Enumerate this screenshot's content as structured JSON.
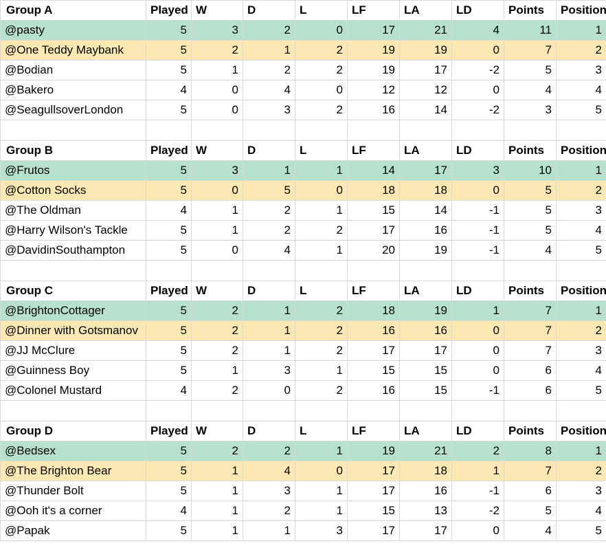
{
  "colors": {
    "first_place_fill": "#b7e1cd",
    "second_place_fill": "#fce8b2",
    "gridline": "#d9d9d9"
  },
  "columns": [
    "Played",
    "W",
    "D",
    "L",
    "LF",
    "LA",
    "LD",
    "Points",
    "Position"
  ],
  "groups": [
    {
      "title": "Group A",
      "rows": [
        [
          "@pasty",
          "5",
          "3",
          "2",
          "0",
          "17",
          "21",
          "4",
          "11",
          "1"
        ],
        [
          "@One Teddy Maybank",
          "5",
          "2",
          "1",
          "2",
          "19",
          "19",
          "0",
          "7",
          "2"
        ],
        [
          "@Bodian",
          "5",
          "1",
          "2",
          "2",
          "19",
          "17",
          "-2",
          "5",
          "3"
        ],
        [
          "@Bakero",
          "4",
          "0",
          "4",
          "0",
          "12",
          "12",
          "0",
          "4",
          "4"
        ],
        [
          "@SeagullsoverLondon",
          "5",
          "0",
          "3",
          "2",
          "16",
          "14",
          "-2",
          "3",
          "5"
        ]
      ]
    },
    {
      "title": "Group B",
      "rows": [
        [
          "@Frutos",
          "5",
          "3",
          "1",
          "1",
          "14",
          "17",
          "3",
          "10",
          "1"
        ],
        [
          "@Cotton Socks",
          "5",
          "0",
          "5",
          "0",
          "18",
          "18",
          "0",
          "5",
          "2"
        ],
        [
          "@The Oldman",
          "4",
          "1",
          "2",
          "1",
          "15",
          "14",
          "-1",
          "5",
          "3"
        ],
        [
          "@Harry Wilson's Tackle",
          "5",
          "1",
          "2",
          "2",
          "17",
          "16",
          "-1",
          "5",
          "4"
        ],
        [
          "@DavidinSouthampton",
          "5",
          "0",
          "4",
          "1",
          "20",
          "19",
          "-1",
          "4",
          "5"
        ]
      ]
    },
    {
      "title": "Group C",
      "rows": [
        [
          "@BrightonCottager",
          "5",
          "2",
          "1",
          "2",
          "18",
          "19",
          "1",
          "7",
          "1"
        ],
        [
          "@Dinner with Gotsmanov",
          "5",
          "2",
          "1",
          "2",
          "16",
          "16",
          "0",
          "7",
          "2"
        ],
        [
          "@JJ McClure",
          "5",
          "2",
          "1",
          "2",
          "17",
          "17",
          "0",
          "7",
          "3"
        ],
        [
          "@Guinness Boy",
          "5",
          "1",
          "3",
          "1",
          "15",
          "15",
          "0",
          "6",
          "4"
        ],
        [
          "@Colonel Mustard",
          "4",
          "2",
          "0",
          "2",
          "16",
          "15",
          "-1",
          "6",
          "5"
        ]
      ]
    },
    {
      "title": "Group D",
      "rows": [
        [
          "@Bedsex",
          "5",
          "2",
          "2",
          "1",
          "19",
          "21",
          "2",
          "8",
          "1"
        ],
        [
          "@The Brighton Bear",
          "5",
          "1",
          "4",
          "0",
          "17",
          "18",
          "1",
          "7",
          "2"
        ],
        [
          "@Thunder Bolt",
          "5",
          "1",
          "3",
          "1",
          "17",
          "16",
          "-1",
          "6",
          "3"
        ],
        [
          "@Ooh it's a corner",
          "4",
          "1",
          "2",
          "1",
          "15",
          "13",
          "-2",
          "5",
          "4"
        ],
        [
          "@Papak",
          "5",
          "1",
          "1",
          "3",
          "17",
          "17",
          "0",
          "4",
          "5"
        ]
      ]
    }
  ]
}
